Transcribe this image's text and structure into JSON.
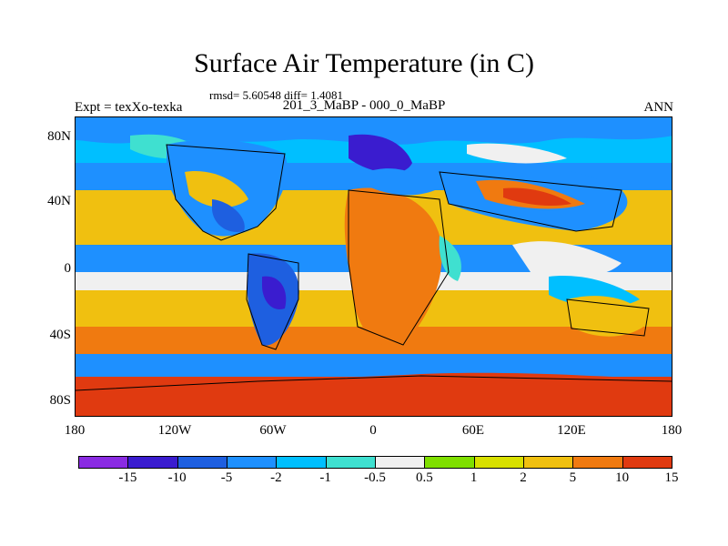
{
  "title": "Surface Air Temperature (in C)",
  "subtitle": "rmsd= 5.60548 diff= 1.4081",
  "left_label": "Expt = texXo-texka",
  "center_label": "201_3_MaBP - 000_0_MaBP",
  "right_label": "ANN",
  "y_ticks": [
    "80N",
    "40N",
    "0",
    "40S",
    "80S"
  ],
  "x_ticks": [
    "180",
    "120W",
    "60W",
    "0",
    "60E",
    "120E",
    "180"
  ],
  "colorbar": {
    "colors": [
      "#8a2be2",
      "#3a1ccf",
      "#1e5fe0",
      "#1e90ff",
      "#00bfff",
      "#3fe0d0",
      "#f0f0f0",
      "#7fdf00",
      "#d8e000",
      "#f0c010",
      "#f07a10",
      "#e03a10"
    ],
    "labels": [
      "-15",
      "-10",
      "-5",
      "-2",
      "-1",
      "-0.5",
      "0.5",
      "1",
      "2",
      "5",
      "10",
      "15"
    ]
  }
}
